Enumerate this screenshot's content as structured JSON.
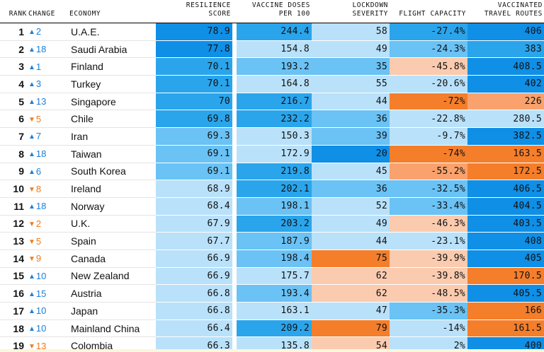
{
  "headers": {
    "rank": "RANK",
    "change": "CHANGE",
    "economy": "ECONOMY",
    "resilience_1": "RESILIENCE",
    "resilience_2": "SCORE",
    "vaccine_1": "VACCINE DOSES",
    "vaccine_2": "PER 100",
    "lockdown_1": "LOCKDOWN",
    "lockdown_2": "SEVERITY",
    "flight": "FLIGHT CAPACITY",
    "vtr_1": "VACCINATED",
    "vtr_2": "TRAVEL ROUTES"
  },
  "colors": {
    "light_blue": "#b9e1fa",
    "mid_blue": "#6ac2f5",
    "blue": "#2aa5ec",
    "dark_blue": "#0f8fe6",
    "light_orange": "#fbcbaf",
    "mid_orange": "#f9a26d",
    "orange": "#f57e2b",
    "up_arrow": "#1a7fd9",
    "down_arrow": "#f07a19"
  },
  "rows": [
    {
      "rank": "1",
      "dir": "up",
      "change": "2",
      "economy": "U.A.E.",
      "resilience": "78.9",
      "vaccine": "244.4",
      "lockdown": "58",
      "flight": "-27.4%",
      "vtr": "406"
    },
    {
      "rank": "2",
      "dir": "up",
      "change": "18",
      "economy": "Saudi Arabia",
      "resilience": "77.8",
      "vaccine": "154.8",
      "lockdown": "49",
      "flight": "-24.3%",
      "vtr": "383"
    },
    {
      "rank": "3",
      "dir": "up",
      "change": "1",
      "economy": "Finland",
      "resilience": "70.1",
      "vaccine": "193.2",
      "lockdown": "35",
      "flight": "-45.8%",
      "vtr": "408.5"
    },
    {
      "rank": "4",
      "dir": "up",
      "change": "3",
      "economy": "Turkey",
      "resilience": "70.1",
      "vaccine": "164.8",
      "lockdown": "55",
      "flight": "-20.6%",
      "vtr": "402"
    },
    {
      "rank": "5",
      "dir": "up",
      "change": "13",
      "economy": "Singapore",
      "resilience": "70",
      "vaccine": "216.7",
      "lockdown": "44",
      "flight": "-72%",
      "vtr": "226"
    },
    {
      "rank": "6",
      "dir": "down",
      "change": "5",
      "economy": "Chile",
      "resilience": "69.8",
      "vaccine": "232.2",
      "lockdown": "36",
      "flight": "-22.8%",
      "vtr": "280.5"
    },
    {
      "rank": "7",
      "dir": "up",
      "change": "7",
      "economy": "Iran",
      "resilience": "69.3",
      "vaccine": "150.3",
      "lockdown": "39",
      "flight": "-9.7%",
      "vtr": "382.5"
    },
    {
      "rank": "8",
      "dir": "up",
      "change": "18",
      "economy": "Taiwan",
      "resilience": "69.1",
      "vaccine": "172.9",
      "lockdown": "20",
      "flight": "-74%",
      "vtr": "163.5"
    },
    {
      "rank": "9",
      "dir": "up",
      "change": "6",
      "economy": "South Korea",
      "resilience": "69.1",
      "vaccine": "219.8",
      "lockdown": "45",
      "flight": "-55.2%",
      "vtr": "172.5"
    },
    {
      "rank": "10",
      "dir": "down",
      "change": "8",
      "economy": "Ireland",
      "resilience": "68.9",
      "vaccine": "202.1",
      "lockdown": "36",
      "flight": "-32.5%",
      "vtr": "406.5"
    },
    {
      "rank": "11",
      "dir": "up",
      "change": "18",
      "economy": "Norway",
      "resilience": "68.4",
      "vaccine": "198.1",
      "lockdown": "52",
      "flight": "-33.4%",
      "vtr": "404.5"
    },
    {
      "rank": "12",
      "dir": "down",
      "change": "2",
      "economy": "U.K.",
      "resilience": "67.9",
      "vaccine": "203.2",
      "lockdown": "49",
      "flight": "-46.3%",
      "vtr": "403.5"
    },
    {
      "rank": "13",
      "dir": "down",
      "change": "5",
      "economy": "Spain",
      "resilience": "67.7",
      "vaccine": "187.9",
      "lockdown": "44",
      "flight": "-23.1%",
      "vtr": "408"
    },
    {
      "rank": "14",
      "dir": "down",
      "change": "9",
      "economy": "Canada",
      "resilience": "66.9",
      "vaccine": "198.4",
      "lockdown": "75",
      "flight": "-39.9%",
      "vtr": "405"
    },
    {
      "rank": "15",
      "dir": "up",
      "change": "10",
      "economy": "New Zealand",
      "resilience": "66.9",
      "vaccine": "175.7",
      "lockdown": "62",
      "flight": "-39.8%",
      "vtr": "170.5"
    },
    {
      "rank": "16",
      "dir": "up",
      "change": "15",
      "economy": "Austria",
      "resilience": "66.8",
      "vaccine": "193.4",
      "lockdown": "62",
      "flight": "-48.5%",
      "vtr": "405.5"
    },
    {
      "rank": "17",
      "dir": "up",
      "change": "10",
      "economy": "Japan",
      "resilience": "66.8",
      "vaccine": "163.1",
      "lockdown": "47",
      "flight": "-35.3%",
      "vtr": "166"
    },
    {
      "rank": "18",
      "dir": "up",
      "change": "10",
      "economy": "Mainland China",
      "resilience": "66.4",
      "vaccine": "209.2",
      "lockdown": "79",
      "flight": "-14%",
      "vtr": "161.5"
    },
    {
      "rank": "19",
      "dir": "down",
      "change": "13",
      "economy": "Colombia",
      "resilience": "66.3",
      "vaccine": "135.8",
      "lockdown": "54",
      "flight": "2%",
      "vtr": "400"
    }
  ]
}
